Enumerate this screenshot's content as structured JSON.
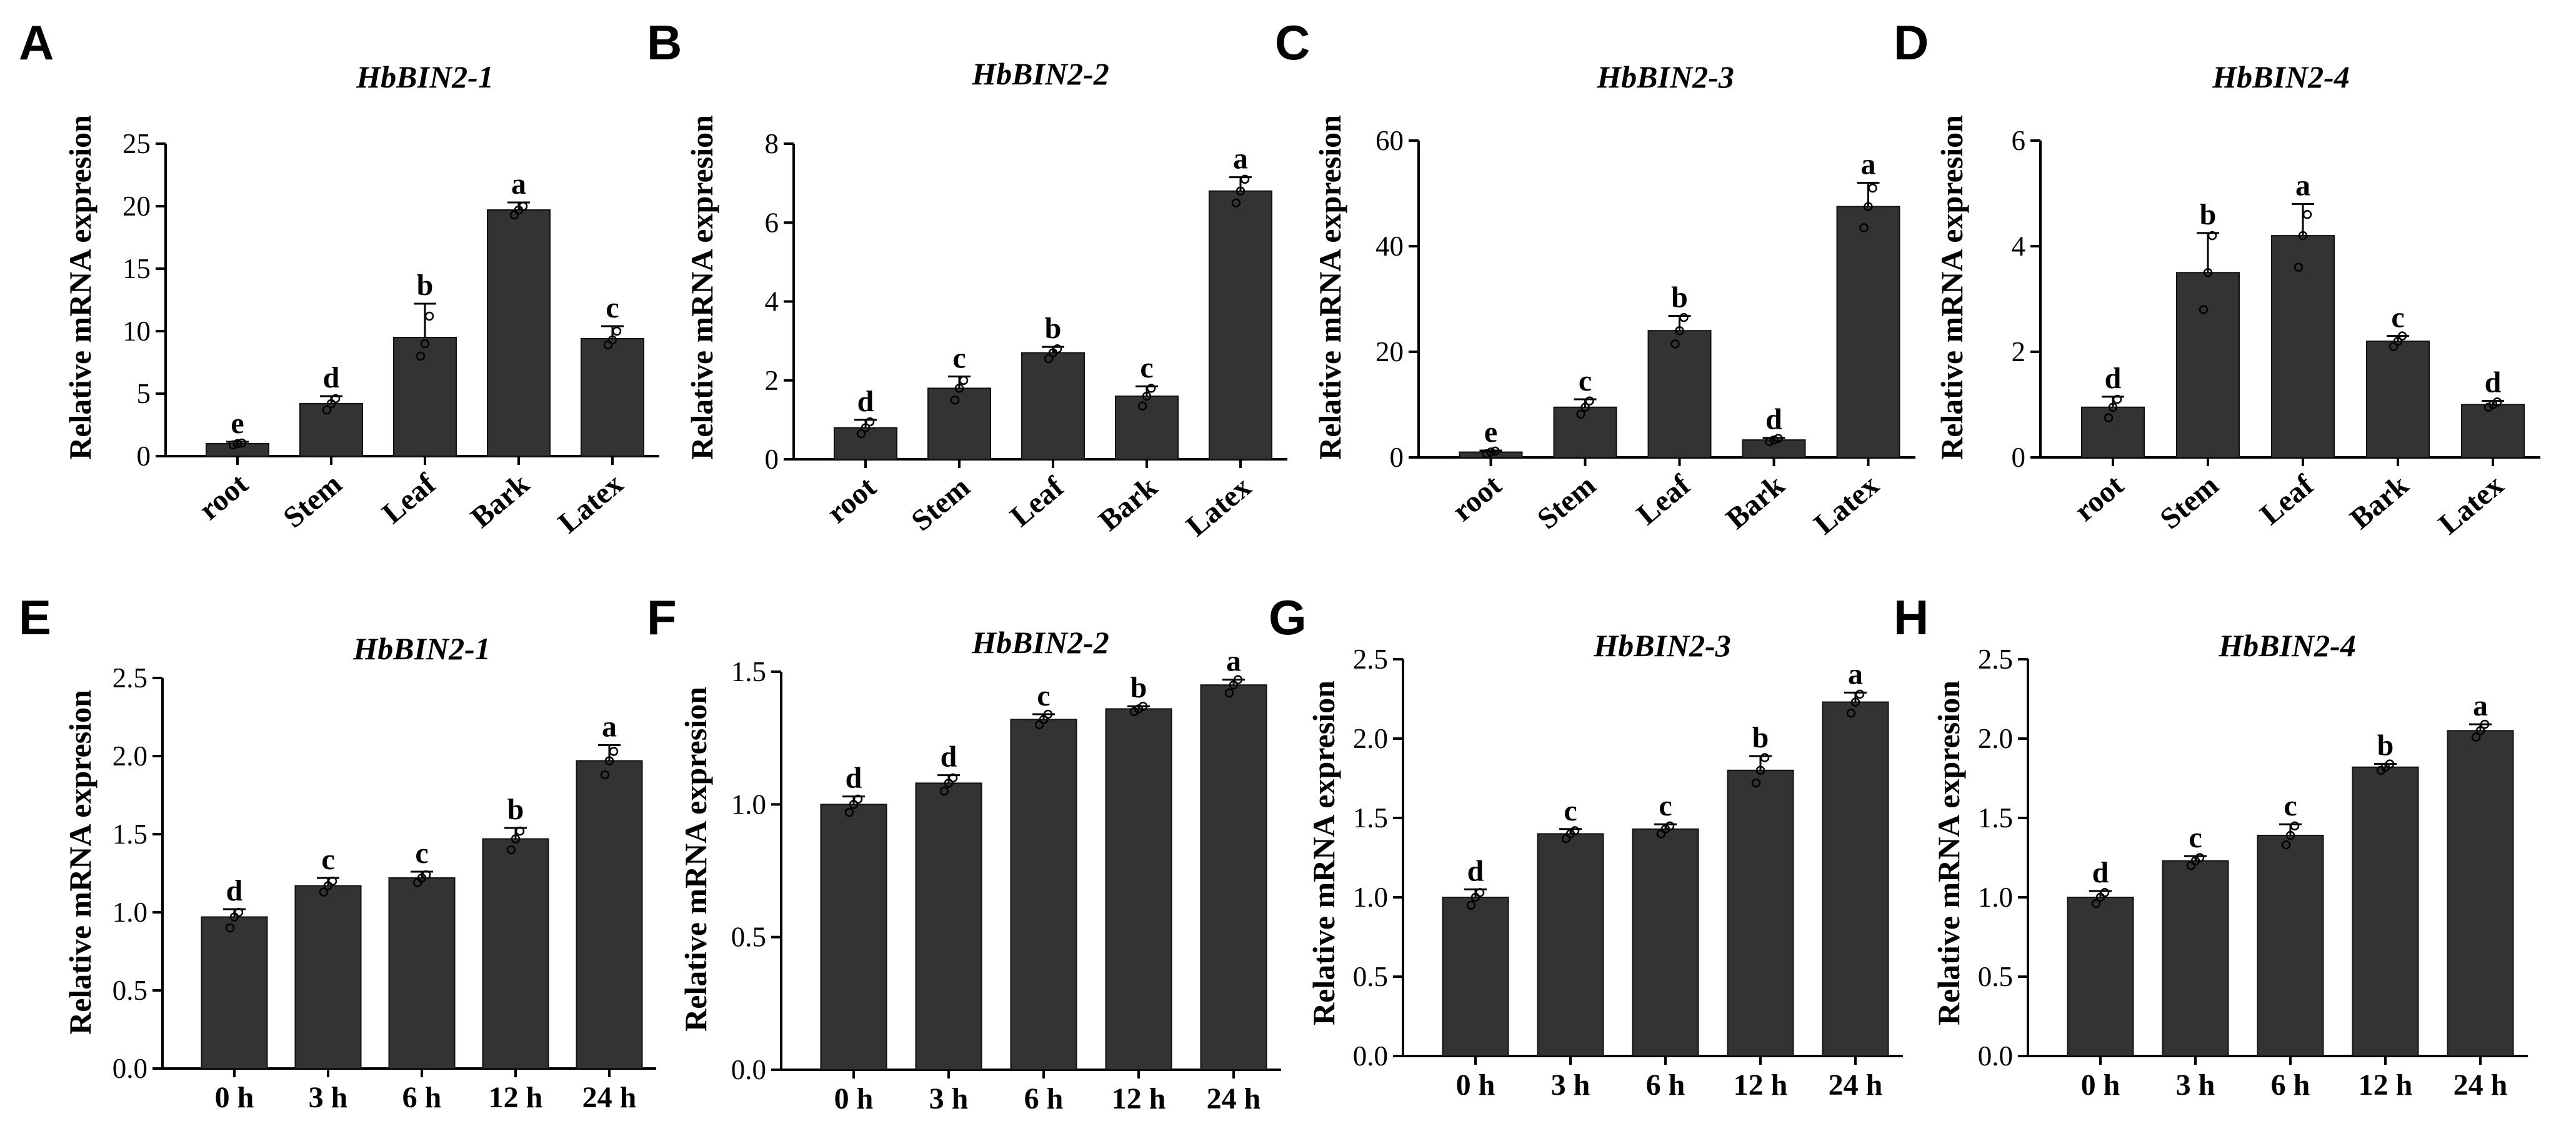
{
  "chart_data": [
    {
      "letter": "A",
      "type": "bar",
      "title": "HbBIN2-1",
      "ylabel": "Relative mRNA expresion",
      "ylim": [
        0,
        25
      ],
      "yticks": [
        "0",
        "5",
        "10",
        "15",
        "20",
        "25"
      ],
      "ytick_values": [
        0,
        5,
        10,
        15,
        20,
        25
      ],
      "categories": [
        "root",
        "Stem",
        "Leaf",
        "Bark",
        "Latex"
      ],
      "values": [
        1.0,
        4.2,
        9.5,
        19.7,
        9.4
      ],
      "errors": [
        0.15,
        0.6,
        2.7,
        0.6,
        1.0
      ],
      "letters": [
        "e",
        "d",
        "b",
        "a",
        "c"
      ],
      "replicates": [
        [
          0.9,
          1.0,
          1.05
        ],
        [
          3.7,
          4.2,
          4.6
        ],
        [
          8.0,
          9.0,
          11.2
        ],
        [
          19.3,
          19.7,
          20.0
        ],
        [
          8.9,
          9.3,
          10.0
        ]
      ],
      "rotate_x": true
    },
    {
      "letter": "B",
      "type": "bar",
      "title": "HbBIN2-2",
      "ylabel": "Relative mRNA expresion",
      "ylim": [
        0,
        8
      ],
      "yticks": [
        "0",
        "2",
        "4",
        "6",
        "8"
      ],
      "ytick_values": [
        0,
        2,
        4,
        6,
        8
      ],
      "categories": [
        "root",
        "Stem",
        "Leaf",
        "Bark",
        "Latex"
      ],
      "values": [
        0.8,
        1.8,
        2.7,
        1.6,
        6.8
      ],
      "errors": [
        0.2,
        0.3,
        0.15,
        0.25,
        0.35
      ],
      "letters": [
        "d",
        "c",
        "b",
        "c",
        "a"
      ],
      "replicates": [
        [
          0.65,
          0.8,
          0.95
        ],
        [
          1.5,
          1.8,
          2.0
        ],
        [
          2.55,
          2.7,
          2.8
        ],
        [
          1.35,
          1.6,
          1.8
        ],
        [
          6.5,
          6.8,
          7.1
        ]
      ],
      "rotate_x": true
    },
    {
      "letter": "C",
      "type": "bar",
      "title": "HbBIN2-3",
      "ylabel": "Relative mRNA expresion",
      "ylim": [
        0,
        60
      ],
      "yticks": [
        "0",
        "20",
        "40",
        "60"
      ],
      "ytick_values": [
        0,
        20,
        40,
        60
      ],
      "categories": [
        "root",
        "Stem",
        "Leaf",
        "Bark",
        "Latex"
      ],
      "values": [
        1.0,
        9.5,
        24.0,
        3.3,
        47.5
      ],
      "errors": [
        0.3,
        1.5,
        2.8,
        0.4,
        4.5
      ],
      "letters": [
        "e",
        "c",
        "b",
        "d",
        "a"
      ],
      "replicates": [
        [
          0.7,
          1.0,
          1.2
        ],
        [
          8.2,
          9.5,
          10.7
        ],
        [
          21.5,
          24.0,
          26.5
        ],
        [
          3.0,
          3.3,
          3.6
        ],
        [
          43.5,
          47.5,
          51.0
        ]
      ],
      "rotate_x": true
    },
    {
      "letter": "D",
      "type": "bar",
      "title": "HbBIN2-4",
      "ylabel": "Relative mRNA expresion",
      "ylim": [
        0,
        6
      ],
      "yticks": [
        "0",
        "2",
        "4",
        "6"
      ],
      "ytick_values": [
        0,
        2,
        4,
        6
      ],
      "categories": [
        "root",
        "Stem",
        "Leaf",
        "Bark",
        "Latex"
      ],
      "values": [
        0.95,
        3.5,
        4.2,
        2.2,
        1.0
      ],
      "errors": [
        0.2,
        0.75,
        0.6,
        0.1,
        0.07
      ],
      "letters": [
        "d",
        "b",
        "a",
        "c",
        "d"
      ],
      "replicates": [
        [
          0.75,
          0.95,
          1.1
        ],
        [
          2.8,
          3.5,
          4.2
        ],
        [
          3.6,
          4.2,
          4.6
        ],
        [
          2.1,
          2.2,
          2.3
        ],
        [
          0.95,
          1.0,
          1.05
        ]
      ],
      "rotate_x": true
    },
    {
      "letter": "E",
      "type": "bar",
      "title": "HbBIN2-1",
      "ylabel": "Relative mRNA expresion",
      "ylim": [
        0,
        2.5
      ],
      "yticks": [
        "0.0",
        "0.5",
        "1.0",
        "1.5",
        "2.0",
        "2.5"
      ],
      "ytick_values": [
        0,
        0.5,
        1.0,
        1.5,
        2.0,
        2.5
      ],
      "categories": [
        "0 h",
        "3 h",
        "6 h",
        "12 h",
        "24 h"
      ],
      "values": [
        0.97,
        1.17,
        1.22,
        1.47,
        1.97
      ],
      "errors": [
        0.05,
        0.05,
        0.04,
        0.07,
        0.1
      ],
      "letters": [
        "d",
        "c",
        "c",
        "b",
        "a"
      ],
      "replicates": [
        [
          0.9,
          0.97,
          1.0
        ],
        [
          1.13,
          1.17,
          1.2
        ],
        [
          1.19,
          1.22,
          1.24
        ],
        [
          1.4,
          1.47,
          1.52
        ],
        [
          1.88,
          1.97,
          2.03
        ]
      ],
      "rotate_x": false
    },
    {
      "letter": "F",
      "type": "bar",
      "title": "HbBIN2-2",
      "ylabel": "Relative mRNA expresion",
      "ylim": [
        0,
        1.5
      ],
      "yticks": [
        "0.0",
        "0.5",
        "1.0",
        "1.5"
      ],
      "ytick_values": [
        0,
        0.5,
        1.0,
        1.5
      ],
      "categories": [
        "0 h",
        "3 h",
        "6 h",
        "12 h",
        "24 h"
      ],
      "values": [
        1.0,
        1.08,
        1.32,
        1.36,
        1.45
      ],
      "errors": [
        0.03,
        0.03,
        0.02,
        0.01,
        0.02
      ],
      "letters": [
        "d",
        "d",
        "c",
        "b",
        "a"
      ],
      "replicates": [
        [
          0.97,
          1.0,
          1.02
        ],
        [
          1.05,
          1.08,
          1.1
        ],
        [
          1.3,
          1.32,
          1.34
        ],
        [
          1.35,
          1.36,
          1.37
        ],
        [
          1.42,
          1.45,
          1.47
        ]
      ],
      "rotate_x": false
    },
    {
      "letter": "G",
      "type": "bar",
      "title": "HbBIN2-3",
      "ylabel": "Relative mRNA expresion",
      "ylim": [
        0,
        2.5
      ],
      "yticks": [
        "0.0",
        "0.5",
        "1.0",
        "1.5",
        "2.0",
        "2.5"
      ],
      "ytick_values": [
        0,
        0.5,
        1.0,
        1.5,
        2.0,
        2.5
      ],
      "categories": [
        "0 h",
        "3 h",
        "6 h",
        "12 h",
        "24 h"
      ],
      "values": [
        1.0,
        1.4,
        1.43,
        1.8,
        2.23
      ],
      "errors": [
        0.05,
        0.03,
        0.03,
        0.09,
        0.06
      ],
      "letters": [
        "d",
        "c",
        "c",
        "b",
        "a"
      ],
      "replicates": [
        [
          0.95,
          1.0,
          1.03
        ],
        [
          1.37,
          1.4,
          1.42
        ],
        [
          1.4,
          1.43,
          1.45
        ],
        [
          1.72,
          1.8,
          1.88
        ],
        [
          2.16,
          2.23,
          2.28
        ]
      ],
      "rotate_x": false
    },
    {
      "letter": "H",
      "type": "bar",
      "title": "HbBIN2-4",
      "ylabel": "Relative mRNA expresion",
      "ylim": [
        0,
        2.5
      ],
      "yticks": [
        "0.0",
        "0.5",
        "1.0",
        "1.5",
        "2.0",
        "2.5"
      ],
      "ytick_values": [
        0,
        0.5,
        1.0,
        1.5,
        2.0,
        2.5
      ],
      "categories": [
        "0 h",
        "3 h",
        "6 h",
        "12 h",
        "24 h"
      ],
      "values": [
        1.0,
        1.23,
        1.39,
        1.82,
        2.05
      ],
      "errors": [
        0.04,
        0.03,
        0.07,
        0.02,
        0.04
      ],
      "letters": [
        "d",
        "c",
        "c",
        "b",
        "a"
      ],
      "replicates": [
        [
          0.96,
          1.0,
          1.03
        ],
        [
          1.2,
          1.23,
          1.25
        ],
        [
          1.33,
          1.39,
          1.45
        ],
        [
          1.8,
          1.82,
          1.84
        ],
        [
          2.01,
          2.05,
          2.09
        ]
      ],
      "rotate_x": false
    }
  ]
}
